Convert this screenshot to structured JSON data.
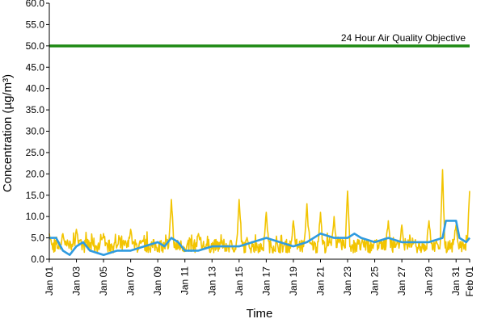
{
  "chart_data": {
    "type": "line",
    "title": "",
    "xlabel": "Time",
    "ylabel": "Concentration (µg/m³)",
    "ylim": [
      0,
      60
    ],
    "yticks": [
      "0.0",
      "5.0",
      "10.0",
      "15.0",
      "20.0",
      "25.0",
      "30.0",
      "35.0",
      "40.0",
      "45.0",
      "50.0",
      "55.0",
      "60.0"
    ],
    "xlim": [
      "Jan 01",
      "Feb 01"
    ],
    "xticks": [
      "Jan 01",
      "Jan 03",
      "Jan 05",
      "Jan 07",
      "Jan 09",
      "Jan 11",
      "Jan 13",
      "Jan 15",
      "Jan 17",
      "Jan 19",
      "Jan 21",
      "Jan 23",
      "Jan 25",
      "Jan 27",
      "Jan 29",
      "Jan 31",
      "Feb 01"
    ],
    "grid": false,
    "legend": "none",
    "annotation": {
      "text": "24 Hour Air Quality Objective",
      "y": 50
    },
    "series": [
      {
        "color": "#f2c400",
        "kind": "hourly",
        "peaks": [
          {
            "x": "Jan 01",
            "y": 6
          },
          {
            "x": "Jan 02",
            "y": 6
          },
          {
            "x": "Jan 03",
            "y": 7
          },
          {
            "x": "Jan 05",
            "y": 6
          },
          {
            "x": "Jan 07",
            "y": 7
          },
          {
            "x": "Jan 10",
            "y": 14
          },
          {
            "x": "Jan 12",
            "y": 6
          },
          {
            "x": "Jan 15",
            "y": 14
          },
          {
            "x": "Jan 17",
            "y": 11
          },
          {
            "x": "Jan 19",
            "y": 9
          },
          {
            "x": "Jan 20",
            "y": 13
          },
          {
            "x": "Jan 21",
            "y": 11
          },
          {
            "x": "Jan 22",
            "y": 10
          },
          {
            "x": "Jan 23",
            "y": 16
          },
          {
            "x": "Jan 26",
            "y": 9
          },
          {
            "x": "Jan 27",
            "y": 8
          },
          {
            "x": "Jan 29",
            "y": 9
          },
          {
            "x": "Jan 30",
            "y": 21
          },
          {
            "x": "Jan 31",
            "y": 8
          },
          {
            "x": "Feb 01",
            "y": 16
          }
        ]
      },
      {
        "color": "#2f9be0",
        "kind": "24-hour running mean",
        "points": [
          {
            "x": "Jan 01",
            "y": 5
          },
          {
            "x": "Jan 01 12:00",
            "y": 5
          },
          {
            "x": "Jan 02",
            "y": 2
          },
          {
            "x": "Jan 02 12:00",
            "y": 1
          },
          {
            "x": "Jan 03",
            "y": 3
          },
          {
            "x": "Jan 03 12:00",
            "y": 4
          },
          {
            "x": "Jan 04",
            "y": 2
          },
          {
            "x": "Jan 05",
            "y": 1
          },
          {
            "x": "Jan 06",
            "y": 2
          },
          {
            "x": "Jan 07",
            "y": 2
          },
          {
            "x": "Jan 08",
            "y": 3
          },
          {
            "x": "Jan 09",
            "y": 4
          },
          {
            "x": "Jan 09 12:00",
            "y": 3
          },
          {
            "x": "Jan 10",
            "y": 5
          },
          {
            "x": "Jan 10 12:00",
            "y": 4
          },
          {
            "x": "Jan 11",
            "y": 2
          },
          {
            "x": "Jan 12",
            "y": 2
          },
          {
            "x": "Jan 13",
            "y": 3
          },
          {
            "x": "Jan 14",
            "y": 3
          },
          {
            "x": "Jan 15",
            "y": 3
          },
          {
            "x": "Jan 16",
            "y": 4
          },
          {
            "x": "Jan 17",
            "y": 5
          },
          {
            "x": "Jan 18",
            "y": 4
          },
          {
            "x": "Jan 19",
            "y": 3
          },
          {
            "x": "Jan 20",
            "y": 4
          },
          {
            "x": "Jan 21",
            "y": 6
          },
          {
            "x": "Jan 22",
            "y": 5
          },
          {
            "x": "Jan 23",
            "y": 5
          },
          {
            "x": "Jan 23 12:00",
            "y": 6
          },
          {
            "x": "Jan 24",
            "y": 5
          },
          {
            "x": "Jan 25",
            "y": 4
          },
          {
            "x": "Jan 26",
            "y": 5
          },
          {
            "x": "Jan 27",
            "y": 4
          },
          {
            "x": "Jan 28",
            "y": 4
          },
          {
            "x": "Jan 29",
            "y": 4
          },
          {
            "x": "Jan 30",
            "y": 5
          },
          {
            "x": "Jan 30 06:00",
            "y": 9
          },
          {
            "x": "Jan 31",
            "y": 9
          },
          {
            "x": "Jan 31 06:00",
            "y": 5
          },
          {
            "x": "Jan 31 18:00",
            "y": 4
          },
          {
            "x": "Feb 01",
            "y": 5
          }
        ]
      },
      {
        "color": "#1f8a14",
        "kind": "objective",
        "name": "24 Hour Air Quality Objective",
        "values": [
          50,
          50
        ]
      }
    ]
  }
}
